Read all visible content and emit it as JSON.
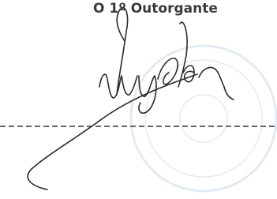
{
  "document": {
    "signature_label": "O 1º Outorgante"
  }
}
